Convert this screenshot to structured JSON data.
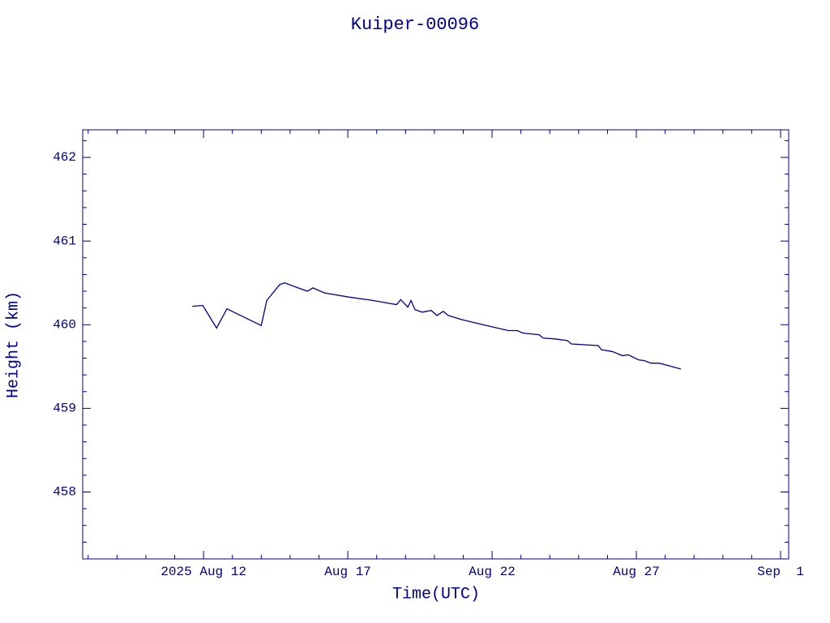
{
  "chart_data": {
    "type": "line",
    "title": "Kuiper-00096",
    "xlabel": "Time(UTC)",
    "ylabel": "Height (km)",
    "color": "#00008b",
    "x": [
      11.61,
      11.97,
      12.45,
      12.81,
      14.0,
      14.19,
      14.64,
      14.81,
      15.2,
      15.6,
      15.79,
      16.19,
      17.03,
      17.87,
      18.69,
      18.83,
      19.08,
      19.19,
      19.33,
      19.58,
      19.89,
      20.09,
      20.31,
      20.48,
      20.96,
      21.8,
      22.56,
      22.87,
      23.07,
      23.63,
      23.77,
      24.19,
      24.61,
      24.75,
      25.68,
      25.79,
      26.16,
      26.52,
      26.72,
      27.08,
      27.28,
      27.51,
      27.79,
      28.12,
      28.54
    ],
    "series": [
      {
        "name": "Height",
        "color": "#00008b",
        "values": [
          460.22,
          460.23,
          459.96,
          460.19,
          459.99,
          460.29,
          460.48,
          460.5,
          460.45,
          460.4,
          460.44,
          460.38,
          460.33,
          460.29,
          460.24,
          460.3,
          460.21,
          460.29,
          460.18,
          460.15,
          460.17,
          460.11,
          460.16,
          460.11,
          460.06,
          459.99,
          459.93,
          459.93,
          459.9,
          459.88,
          459.84,
          459.83,
          459.81,
          459.77,
          459.75,
          459.7,
          459.68,
          459.63,
          459.64,
          459.58,
          459.57,
          459.54,
          459.54,
          459.51,
          459.47
        ]
      }
    ],
    "xlim": [
      7.81,
      32.28
    ],
    "ylim": [
      457.2,
      462.33
    ],
    "xticks": [
      {
        "value": 12,
        "label": "2025 Aug 12"
      },
      {
        "value": 17,
        "label": "Aug 17"
      },
      {
        "value": 22,
        "label": "Aug 22"
      },
      {
        "value": 27,
        "label": "Aug 27"
      },
      {
        "value": 32,
        "label": "Sep  1"
      }
    ],
    "yticks": [
      458,
      459,
      460,
      461,
      462
    ],
    "xminorticks": [
      8,
      9,
      10,
      11,
      13,
      14,
      15,
      16,
      18,
      19,
      20,
      21,
      23,
      24,
      25,
      26,
      28,
      29,
      30,
      31
    ],
    "yminorticks": [
      457.4,
      457.6,
      457.8,
      458.2,
      458.4,
      458.6,
      458.8,
      459.2,
      459.4,
      459.6,
      459.8,
      460.2,
      460.4,
      460.6,
      460.8,
      461.2,
      461.4,
      461.6,
      461.8,
      462.2
    ]
  }
}
